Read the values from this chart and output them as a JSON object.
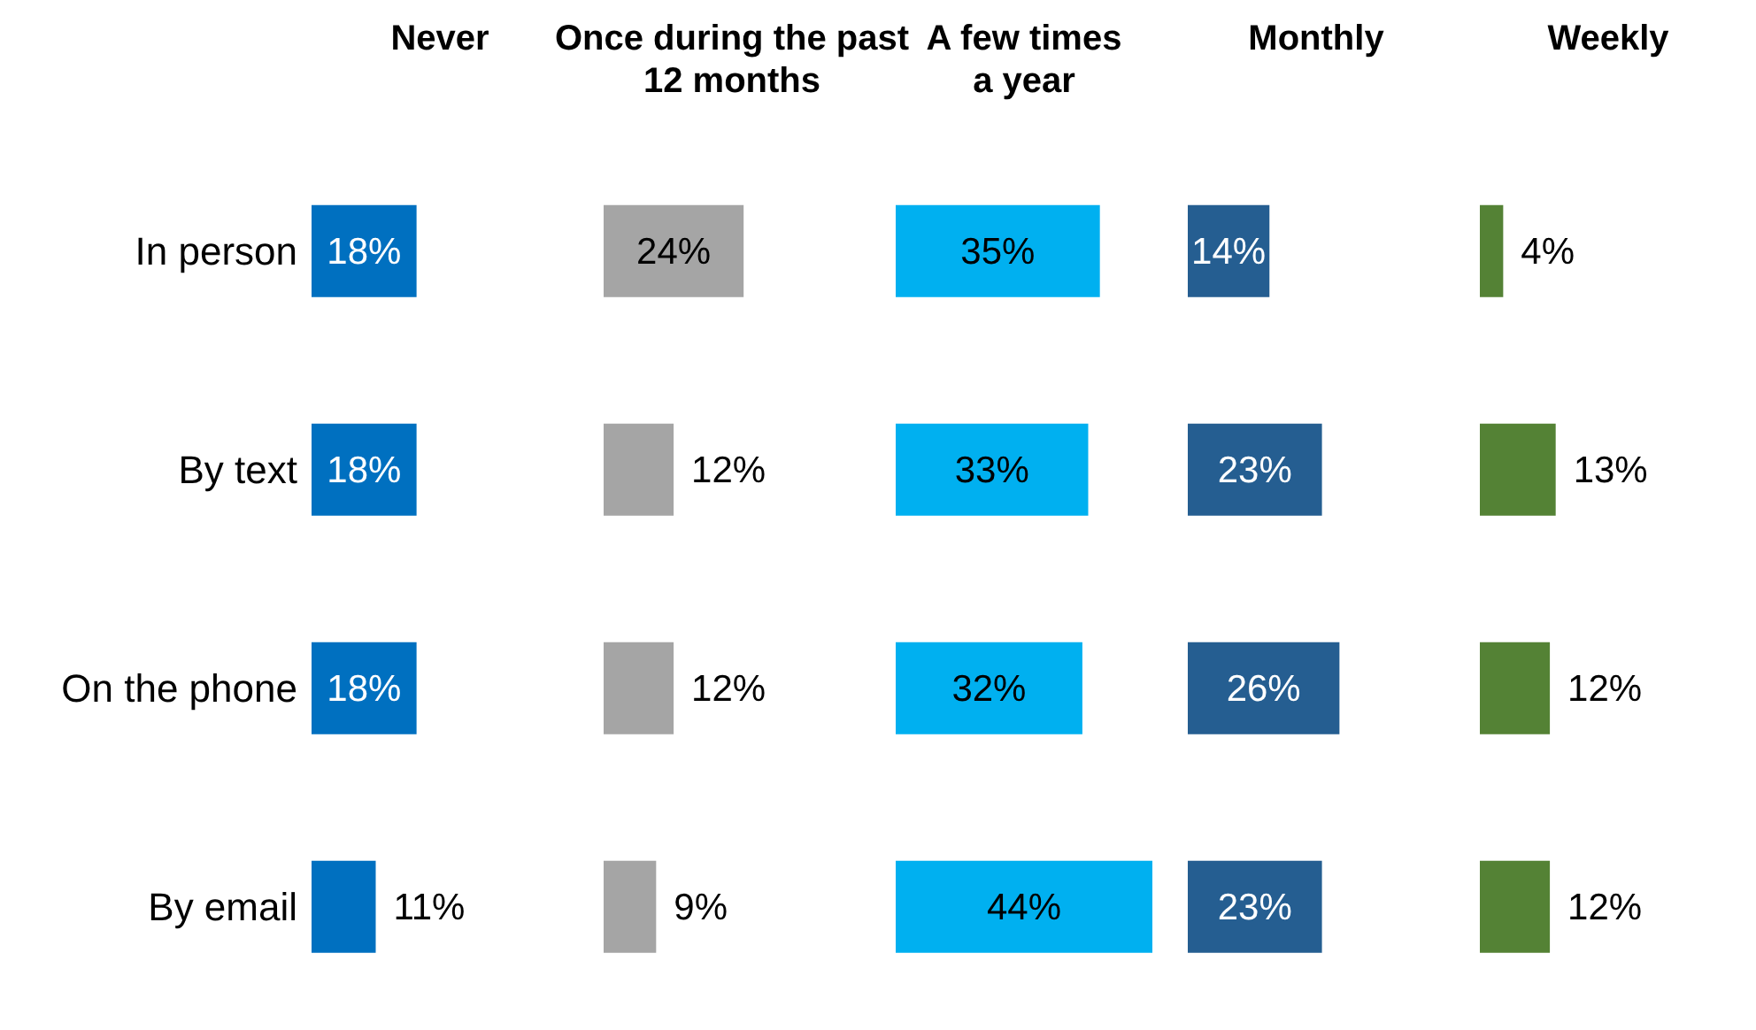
{
  "chart_data": [
    {
      "type": "bar",
      "orientation": "horizontal",
      "title": "Never",
      "categories": [
        "In person",
        "By text",
        "On the phone",
        "By email"
      ],
      "values": [
        18,
        18,
        18,
        11
      ],
      "color": "#0070c0",
      "value_labels": [
        "18%",
        "18%",
        "18%",
        "11%"
      ],
      "tick_labels": "y"
    },
    {
      "type": "bar",
      "orientation": "horizontal",
      "title": "Once during the past\n12 months",
      "categories": [
        null,
        null,
        null,
        null
      ],
      "values": [
        24,
        12,
        12,
        9
      ],
      "color": "#a5a5a5",
      "value_labels": [
        "24%",
        "12%",
        "12%",
        "9%"
      ],
      "tick_labels": false
    },
    {
      "type": "bar",
      "orientation": "horizontal",
      "title": "A few times\na year",
      "categories": [
        null,
        null,
        null,
        null
      ],
      "values": [
        35,
        33,
        32,
        44
      ],
      "color": "#00b0f0",
      "value_labels": [
        "35%",
        "33%",
        "32%",
        "44%"
      ],
      "tick_labels": false
    },
    {
      "type": "bar",
      "orientation": "horizontal",
      "title": "Monthly",
      "categories": [
        null,
        null,
        null,
        null
      ],
      "values": [
        14,
        23,
        26,
        23
      ],
      "color": "#255e91",
      "value_labels": [
        "14%",
        "23%",
        "26%",
        "23%"
      ],
      "tick_labels": false
    },
    {
      "type": "bar",
      "orientation": "horizontal",
      "title": "Weekly",
      "categories": [
        null,
        null,
        null,
        null
      ],
      "values": [
        4,
        13,
        12,
        12
      ],
      "color": "#548235",
      "value_labels": [
        "4%",
        "13%",
        "12%",
        "12%"
      ],
      "tick_labels": false
    }
  ]
}
